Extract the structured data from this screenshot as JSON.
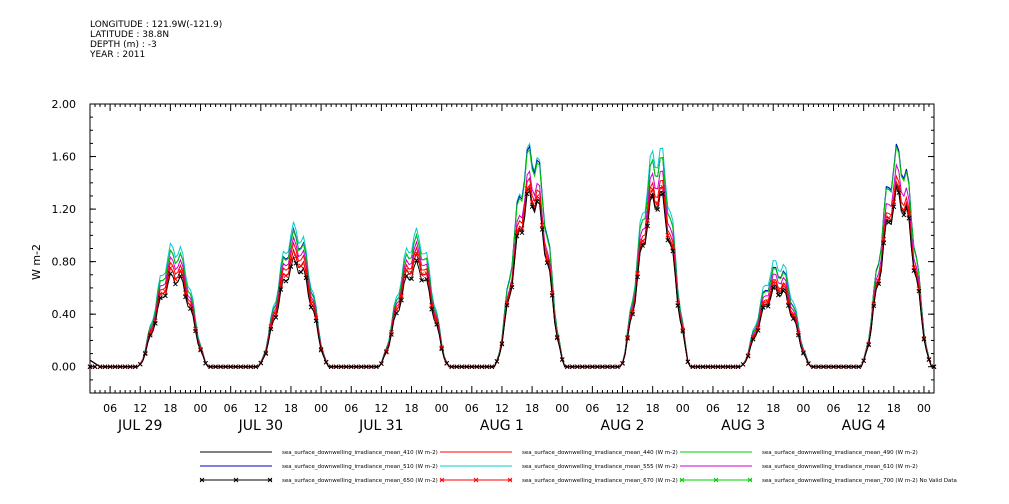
{
  "header": {
    "longitude": "LONGITUDE : 121.9W(-121.9)",
    "latitude": "LATITUDE : 38.8N",
    "depth": "DEPTH (m) : -3",
    "year": "YEAR : 2011"
  },
  "chart_data": {
    "type": "line",
    "ylabel": "W m-2",
    "ylim": [
      -0.2,
      2.0
    ],
    "yticks": [
      0.0,
      0.4,
      0.8,
      1.2,
      1.6,
      2.0
    ],
    "ytick_labels": [
      "0.00",
      "0.40",
      "0.80",
      "1.20",
      "1.60",
      "2.00"
    ],
    "x_hour_ticks": [
      "06",
      "12",
      "18",
      "00",
      "06",
      "12",
      "18",
      "00",
      "06",
      "12",
      "18",
      "00",
      "06",
      "12",
      "18",
      "00",
      "06",
      "12",
      "18",
      "00",
      "06",
      "12",
      "18",
      "00",
      "06",
      "12",
      "18",
      "00"
    ],
    "x_date_labels": [
      "JUL 29",
      "JUL 30",
      "JUL 31",
      "AUG 1",
      "AUG 2",
      "AUG 3",
      "AUG 4"
    ],
    "xlim_hours": [
      2,
      170
    ],
    "grid": false,
    "legend_position": "bottom",
    "day_peaks": [
      {
        "day": "JUL 29",
        "peak_hour": 19,
        "values": {
          "410": 0.72,
          "440": 0.76,
          "490": 0.85,
          "510": 0.85,
          "555": 0.9,
          "610": 0.8,
          "650": 0.68,
          "670": 0.72
        }
      },
      {
        "day": "JUL 30",
        "peak_hour": 43,
        "values": {
          "410": 0.83,
          "440": 0.88,
          "490": 0.97,
          "510": 0.98,
          "555": 1.03,
          "610": 0.92,
          "650": 0.78,
          "670": 0.83
        }
      },
      {
        "day": "JUL 31",
        "peak_hour": 67,
        "values": {
          "410": 0.8,
          "440": 0.84,
          "490": 0.93,
          "510": 0.93,
          "555": 0.98,
          "610": 0.88,
          "650": 0.75,
          "670": 0.8
        }
      },
      {
        "day": "AUG 1",
        "peak_hour": 90,
        "values": {
          "410": 1.3,
          "440": 1.37,
          "490": 1.58,
          "510": 1.6,
          "555": 1.62,
          "610": 1.42,
          "650": 1.28,
          "670": 1.32
        }
      },
      {
        "day": "AUG 2",
        "peak_hour": 115,
        "values": {
          "410": 1.3,
          "440": 1.38,
          "490": 1.55,
          "510": 1.55,
          "555": 1.62,
          "610": 1.45,
          "650": 1.28,
          "670": 1.33
        }
      },
      {
        "day": "AUG 3",
        "peak_hour": 139,
        "values": {
          "410": 0.6,
          "440": 0.64,
          "490": 0.72,
          "510": 0.73,
          "555": 0.78,
          "610": 0.68,
          "650": 0.58,
          "670": 0.62
        }
      },
      {
        "day": "AUG 4",
        "peak_hour": 163,
        "values": {
          "410": 1.3,
          "440": 1.36,
          "490": 1.57,
          "510": 1.59,
          "555": 1.58,
          "610": 1.44,
          "650": 1.28,
          "670": 1.32
        }
      }
    ],
    "series": [
      {
        "name": "sea_surface_downwelling_irradiance_mean_410 (W m-2)",
        "key": "410",
        "color": "#000000",
        "marker": false
      },
      {
        "name": "sea_surface_downwelling_irradiance_mean_440 (W m-2)",
        "key": "440",
        "color": "#ff0000",
        "marker": false
      },
      {
        "name": "sea_surface_downwelling_irradiance_mean_490 (W m-2)",
        "key": "490",
        "color": "#00cc00",
        "marker": false
      },
      {
        "name": "sea_surface_downwelling_irradiance_mean_510 (W m-2)",
        "key": "510",
        "color": "#0000cc",
        "marker": false
      },
      {
        "name": "sea_surface_downwelling_irradiance_mean_555 (W m-2)",
        "key": "555",
        "color": "#00cccc",
        "marker": false
      },
      {
        "name": "sea_surface_downwelling_irradiance_mean_610 (W m-2)",
        "key": "610",
        "color": "#cc00cc",
        "marker": false
      },
      {
        "name": "sea_surface_downwelling_irradiance_mean_650 (W m-2)",
        "key": "650",
        "color": "#000000",
        "marker": true
      },
      {
        "name": "sea_surface_downwelling_irradiance_mean_670 (W m-2)",
        "key": "670",
        "color": "#ff0000",
        "marker": true
      },
      {
        "name": "sea_surface_downwelling_irradiance_mean_700 (W m-2) No Valid Data",
        "key": "700",
        "color": "#00cc00",
        "marker": true,
        "no_data": true
      }
    ]
  }
}
